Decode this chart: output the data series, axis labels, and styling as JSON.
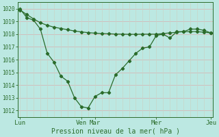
{
  "line1_x": [
    0,
    1,
    2,
    3,
    4,
    5,
    6,
    7,
    8,
    9,
    10,
    11,
    12,
    13,
    14,
    15,
    16,
    17,
    18,
    19,
    20,
    21,
    22,
    23,
    24,
    25,
    26,
    27,
    28
  ],
  "line1_y": [
    1020.0,
    1019.3,
    1019.1,
    1018.4,
    1016.5,
    1015.8,
    1014.7,
    1014.3,
    1013.0,
    1012.3,
    1012.2,
    1013.1,
    1013.4,
    1013.4,
    1014.8,
    1015.3,
    1015.9,
    1016.5,
    1016.9,
    1017.0,
    1017.9,
    1018.0,
    1017.7,
    1018.2,
    1018.2,
    1018.4,
    1018.4,
    1018.3,
    1018.1
  ],
  "line2_x": [
    0,
    1,
    2,
    3,
    4,
    5,
    6,
    7,
    8,
    9,
    10,
    11,
    12,
    13,
    14,
    15,
    16,
    17,
    18,
    19,
    20,
    21,
    22,
    23,
    24,
    25,
    26,
    27,
    28
  ],
  "line2_y": [
    1019.9,
    1019.55,
    1019.2,
    1018.9,
    1018.7,
    1018.55,
    1018.45,
    1018.35,
    1018.25,
    1018.18,
    1018.12,
    1018.08,
    1018.05,
    1018.03,
    1018.01,
    1018.0,
    1017.99,
    1017.99,
    1018.0,
    1018.0,
    1018.0,
    1018.05,
    1018.1,
    1018.15,
    1018.2,
    1018.2,
    1018.2,
    1018.15,
    1018.1
  ],
  "xtick_positions": [
    0,
    9,
    11,
    20,
    28
  ],
  "xtick_labels": [
    "Lun",
    "Ven",
    "Mar",
    "Mer",
    "Jeu"
  ],
  "ytick_positions": [
    1012,
    1013,
    1014,
    1015,
    1016,
    1017,
    1018,
    1019,
    1020
  ],
  "ytick_labels": [
    "1012",
    "1013",
    "1014",
    "1015",
    "1016",
    "1017",
    "1018",
    "1019",
    "1020"
  ],
  "ylim": [
    1011.5,
    1020.5
  ],
  "xlim": [
    -0.3,
    28.3
  ],
  "xlabel": "Pression niveau de la mer( hPa )",
  "line_color": "#2a6b2a",
  "marker": "D",
  "markersize": 2.2,
  "linewidth": 0.9,
  "bg_color": "#bce8e2",
  "grid_color_h": "#d4b8b8",
  "grid_color_v": "#c8d4c8",
  "n_xgrid": 29
}
